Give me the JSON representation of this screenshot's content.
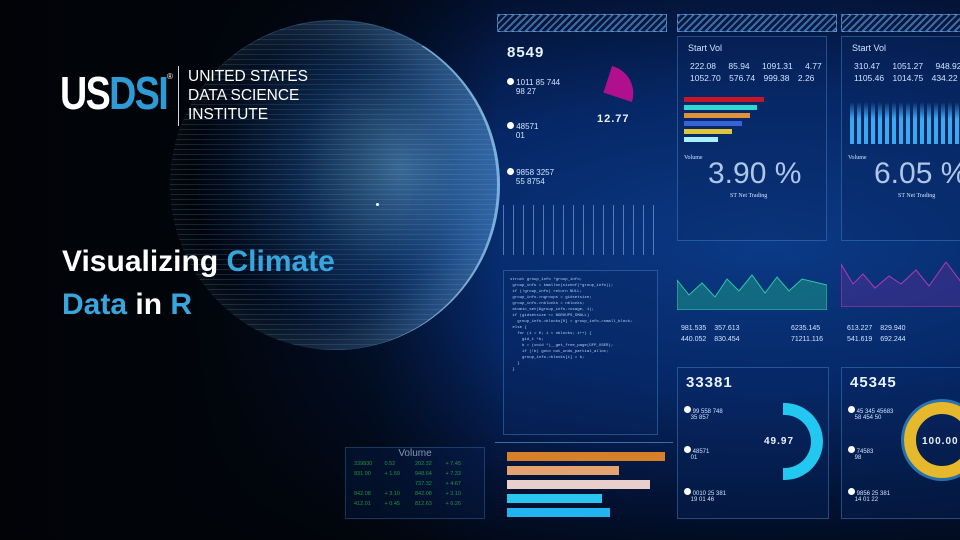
{
  "logo": {
    "mark_left": "US",
    "mark_right": "DSI",
    "registered": "®",
    "lines": [
      "UNITED STATES",
      "DATA SCIENCE",
      "INSTITUTE"
    ]
  },
  "headline": {
    "part1": "Visualizing ",
    "part2": "Climate",
    "part3": "Data",
    "part4": " in ",
    "part5": "R"
  },
  "colors": {
    "accent_blue": "#38a6dd",
    "background": "#02050c",
    "dashboard_blue": "#062766"
  },
  "dashboard": {
    "col1": {
      "value": "8549",
      "gauge_value": "12.77",
      "items": [
        [
          "1011  85  744",
          "98  27"
        ],
        [
          "48571",
          "01"
        ],
        [
          "9858  3257",
          "55 8754"
        ]
      ]
    },
    "col2": {
      "header": "Start Vol",
      "rows": [
        [
          "222.08",
          "85.94",
          "1091.31",
          "4.77"
        ],
        [
          "1052.70",
          "576.74",
          "999.38",
          "2.26"
        ]
      ],
      "label": "Volume",
      "percent": "3.90 %",
      "sub": "ST Net Trading",
      "stats": [
        [
          "981.535",
          "357.613",
          "6235.145"
        ],
        [
          "440.052",
          "830.454",
          "71211.116"
        ]
      ],
      "ring_title": "33381",
      "ring_value": "49.97",
      "ring_fill": 0.5,
      "items": [
        [
          "99  558  748",
          "35  857"
        ],
        [
          "48571",
          "01"
        ],
        [
          "0010  25 381",
          "19 01 46"
        ]
      ]
    },
    "col3": {
      "header": "Start Vol",
      "rows": [
        [
          "310.47",
          "1051.27",
          "948.92"
        ],
        [
          "1105.46",
          "1014.75",
          "434.22"
        ]
      ],
      "label": "Volume",
      "percent": "6.05 %",
      "sub": "ST Net Trading",
      "stats": [
        [
          "613.227",
          "829.940"
        ],
        [
          "541.619",
          "692.244"
        ]
      ],
      "ring_title": "45345",
      "ring_value": "100.00",
      "ring_fill": 1.0,
      "items": [
        [
          "45  345  45683",
          "58  454  50"
        ],
        [
          "74583",
          "98"
        ],
        [
          "9856  25 381",
          "14 01 22"
        ]
      ]
    },
    "volume_table": {
      "title": "Volume",
      "rows": [
        [
          "339830",
          "0.52",
          "202.32",
          "+ 7.45"
        ],
        [
          "831.90",
          "+ 1.59",
          "948.64",
          "+ 7.33"
        ],
        [
          "",
          "",
          "737.32",
          "+ 4.67"
        ],
        [
          "842.08",
          "+ 3.10",
          "842.08",
          "+ 3.10"
        ],
        [
          "412.01",
          "+ 0.45",
          "812.63",
          "+ 6.26"
        ]
      ]
    }
  }
}
